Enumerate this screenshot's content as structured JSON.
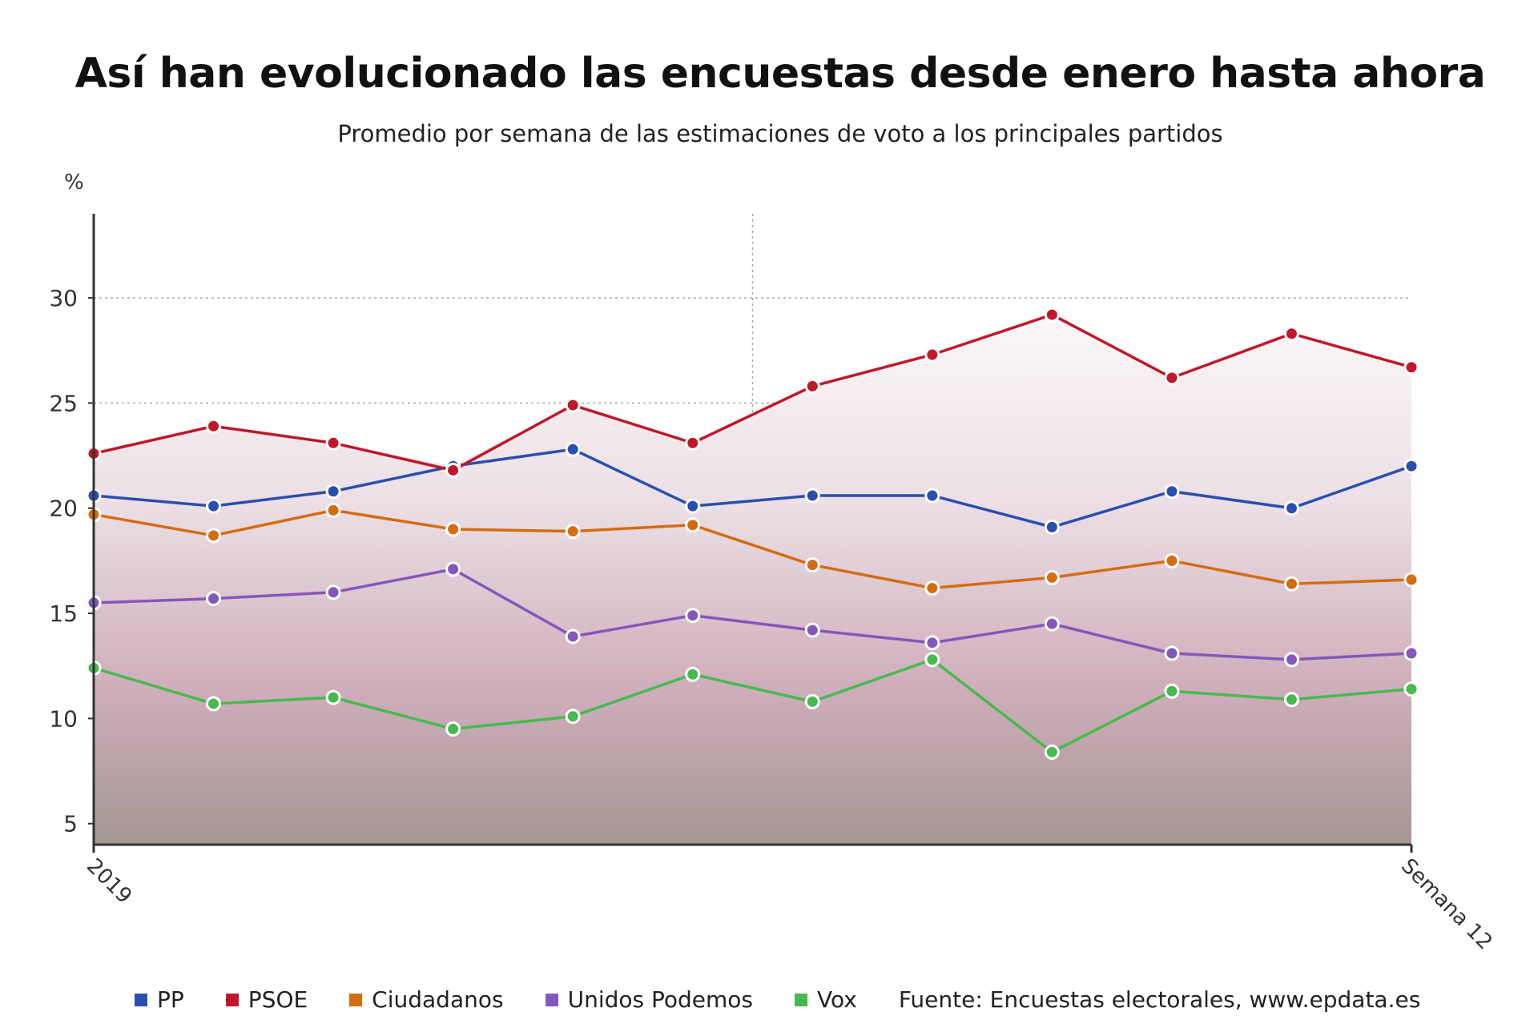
{
  "chart_data": {
    "type": "line",
    "title": "Así han evolucionado las encuestas desde enero hasta ahora",
    "subtitle": "Promedio por semana de las estimaciones de voto a los principales partidos",
    "ylabel": "%",
    "xlabel": "",
    "ylim": [
      4,
      34
    ],
    "yticks": [
      5,
      10,
      15,
      20,
      25,
      30
    ],
    "x_tick_labels": [
      "2019",
      "Semana 12"
    ],
    "grid": true,
    "legend": "bottom",
    "source": "Fuente: Encuestas electorales, www.epdata.es",
    "series": [
      {
        "name": "PP",
        "color": "#2a4fae",
        "values": [
          20.6,
          20.1,
          20.8,
          22.0,
          22.8,
          20.1,
          20.6,
          20.6,
          19.1,
          20.8,
          20.0,
          22.0
        ]
      },
      {
        "name": "PSOE",
        "color": "#c0172a",
        "values": [
          22.6,
          23.9,
          23.1,
          21.8,
          24.9,
          23.1,
          25.8,
          27.3,
          29.2,
          26.2,
          28.3,
          26.7
        ]
      },
      {
        "name": "Ciudadanos",
        "color": "#d46c12",
        "values": [
          19.7,
          18.7,
          19.9,
          19.0,
          18.9,
          19.2,
          17.3,
          16.2,
          16.7,
          17.5,
          16.4,
          16.6
        ]
      },
      {
        "name": "Unidos Podemos",
        "color": "#8557b8",
        "values": [
          15.5,
          15.7,
          16.0,
          17.1,
          13.9,
          14.9,
          14.2,
          13.6,
          14.5,
          13.1,
          12.8,
          13.1
        ]
      },
      {
        "name": "Vox",
        "color": "#48b94f",
        "values": [
          12.4,
          10.7,
          11.0,
          9.5,
          10.1,
          12.1,
          10.8,
          12.8,
          8.4,
          11.3,
          10.9,
          11.4
        ]
      }
    ]
  }
}
